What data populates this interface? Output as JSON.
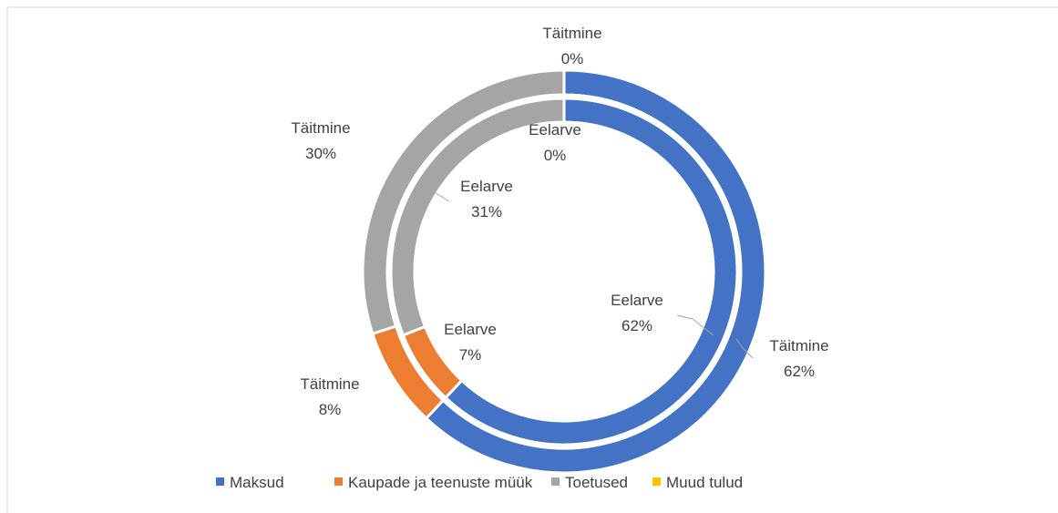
{
  "chart_data": {
    "type": "doughnut",
    "categories": [
      "Maksud",
      "Kaupade ja teenuste müük",
      "Toetused",
      "Muud tulud"
    ],
    "colors": [
      "#4472c4",
      "#ed7d31",
      "#a5a5a5",
      "#ffc000"
    ],
    "series": [
      {
        "name": "Eelarve",
        "values": [
          62,
          7,
          31,
          0
        ],
        "value_labels": [
          "62%",
          "7%",
          "31%",
          "0%"
        ]
      },
      {
        "name": "Täitmine",
        "values": [
          62,
          8,
          30,
          0
        ],
        "value_labels": [
          "62%",
          "8%",
          "30%",
          "0%"
        ]
      }
    ],
    "legend": "bottom"
  }
}
